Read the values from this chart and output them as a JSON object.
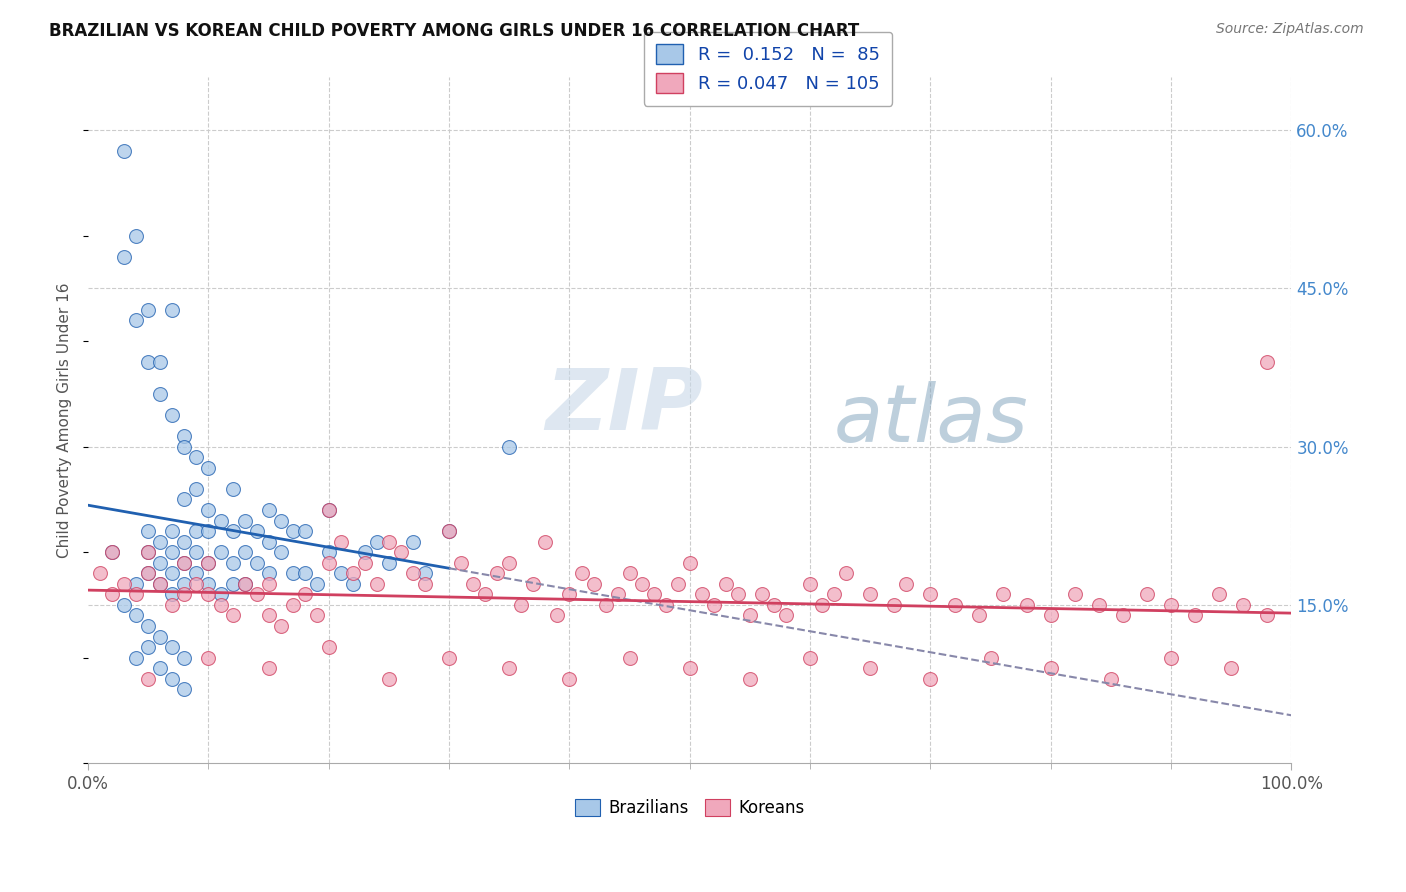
{
  "title": "BRAZILIAN VS KOREAN CHILD POVERTY AMONG GIRLS UNDER 16 CORRELATION CHART",
  "source": "Source: ZipAtlas.com",
  "ylabel": "Child Poverty Among Girls Under 16",
  "xlim": [
    0.0,
    1.0
  ],
  "ylim": [
    0.0,
    0.65
  ],
  "ytick_positions": [
    0.15,
    0.3,
    0.45,
    0.6
  ],
  "ytick_labels": [
    "15.0%",
    "30.0%",
    "45.0%",
    "60.0%"
  ],
  "color_brazilian": "#A8C8E8",
  "color_korean": "#F0A8BC",
  "color_trend_brazilian": "#2060B0",
  "color_trend_korean": "#D04060",
  "watermark_zip": "ZIP",
  "watermark_atlas": "atlas",
  "background_color": "#FFFFFF",
  "grid_color": "#CCCCCC",
  "brazil_x": [
    0.02,
    0.04,
    0.05,
    0.05,
    0.05,
    0.06,
    0.06,
    0.06,
    0.07,
    0.07,
    0.07,
    0.07,
    0.08,
    0.08,
    0.08,
    0.08,
    0.09,
    0.09,
    0.09,
    0.09,
    0.1,
    0.1,
    0.1,
    0.1,
    0.1,
    0.11,
    0.11,
    0.11,
    0.12,
    0.12,
    0.12,
    0.12,
    0.13,
    0.13,
    0.13,
    0.14,
    0.14,
    0.15,
    0.15,
    0.15,
    0.16,
    0.16,
    0.17,
    0.17,
    0.18,
    0.18,
    0.19,
    0.2,
    0.2,
    0.21,
    0.22,
    0.23,
    0.24,
    0.25,
    0.27,
    0.28,
    0.3,
    0.03,
    0.04,
    0.05,
    0.06,
    0.07,
    0.08,
    0.09,
    0.03,
    0.04,
    0.05,
    0.06,
    0.07,
    0.08,
    0.04,
    0.05,
    0.06,
    0.07,
    0.08,
    0.35,
    0.03,
    0.04,
    0.05,
    0.06,
    0.07,
    0.08
  ],
  "brazil_y": [
    0.2,
    0.17,
    0.18,
    0.2,
    0.22,
    0.17,
    0.19,
    0.21,
    0.16,
    0.18,
    0.2,
    0.22,
    0.17,
    0.19,
    0.21,
    0.25,
    0.18,
    0.2,
    0.22,
    0.26,
    0.17,
    0.19,
    0.22,
    0.24,
    0.28,
    0.16,
    0.2,
    0.23,
    0.17,
    0.19,
    0.22,
    0.26,
    0.17,
    0.2,
    0.23,
    0.19,
    0.22,
    0.18,
    0.21,
    0.24,
    0.2,
    0.23,
    0.18,
    0.22,
    0.18,
    0.22,
    0.17,
    0.2,
    0.24,
    0.18,
    0.17,
    0.2,
    0.21,
    0.19,
    0.21,
    0.18,
    0.22,
    0.48,
    0.42,
    0.38,
    0.35,
    0.43,
    0.31,
    0.29,
    0.58,
    0.5,
    0.43,
    0.38,
    0.33,
    0.3,
    0.1,
    0.11,
    0.09,
    0.08,
    0.07,
    0.3,
    0.15,
    0.14,
    0.13,
    0.12,
    0.11,
    0.1
  ],
  "korean_x": [
    0.01,
    0.02,
    0.02,
    0.03,
    0.04,
    0.05,
    0.05,
    0.06,
    0.07,
    0.08,
    0.08,
    0.09,
    0.1,
    0.1,
    0.11,
    0.12,
    0.13,
    0.14,
    0.15,
    0.15,
    0.16,
    0.17,
    0.18,
    0.19,
    0.2,
    0.2,
    0.21,
    0.22,
    0.23,
    0.24,
    0.25,
    0.26,
    0.27,
    0.28,
    0.3,
    0.31,
    0.32,
    0.33,
    0.34,
    0.35,
    0.36,
    0.37,
    0.38,
    0.39,
    0.4,
    0.41,
    0.42,
    0.43,
    0.44,
    0.45,
    0.46,
    0.47,
    0.48,
    0.49,
    0.5,
    0.51,
    0.52,
    0.53,
    0.54,
    0.55,
    0.56,
    0.57,
    0.58,
    0.6,
    0.61,
    0.62,
    0.63,
    0.65,
    0.67,
    0.68,
    0.7,
    0.72,
    0.74,
    0.76,
    0.78,
    0.8,
    0.82,
    0.84,
    0.86,
    0.88,
    0.9,
    0.92,
    0.94,
    0.96,
    0.98,
    0.05,
    0.1,
    0.15,
    0.2,
    0.25,
    0.3,
    0.35,
    0.4,
    0.45,
    0.5,
    0.55,
    0.6,
    0.65,
    0.7,
    0.75,
    0.8,
    0.85,
    0.9,
    0.95,
    0.98
  ],
  "korean_y": [
    0.18,
    0.2,
    0.16,
    0.17,
    0.16,
    0.18,
    0.2,
    0.17,
    0.15,
    0.16,
    0.19,
    0.17,
    0.16,
    0.19,
    0.15,
    0.14,
    0.17,
    0.16,
    0.14,
    0.17,
    0.13,
    0.15,
    0.16,
    0.14,
    0.24,
    0.19,
    0.21,
    0.18,
    0.19,
    0.17,
    0.21,
    0.2,
    0.18,
    0.17,
    0.22,
    0.19,
    0.17,
    0.16,
    0.18,
    0.19,
    0.15,
    0.17,
    0.21,
    0.14,
    0.16,
    0.18,
    0.17,
    0.15,
    0.16,
    0.18,
    0.17,
    0.16,
    0.15,
    0.17,
    0.19,
    0.16,
    0.15,
    0.17,
    0.16,
    0.14,
    0.16,
    0.15,
    0.14,
    0.17,
    0.15,
    0.16,
    0.18,
    0.16,
    0.15,
    0.17,
    0.16,
    0.15,
    0.14,
    0.16,
    0.15,
    0.14,
    0.16,
    0.15,
    0.14,
    0.16,
    0.15,
    0.14,
    0.16,
    0.15,
    0.14,
    0.08,
    0.1,
    0.09,
    0.11,
    0.08,
    0.1,
    0.09,
    0.08,
    0.1,
    0.09,
    0.08,
    0.1,
    0.09,
    0.08,
    0.1,
    0.09,
    0.08,
    0.1,
    0.09,
    0.38
  ]
}
